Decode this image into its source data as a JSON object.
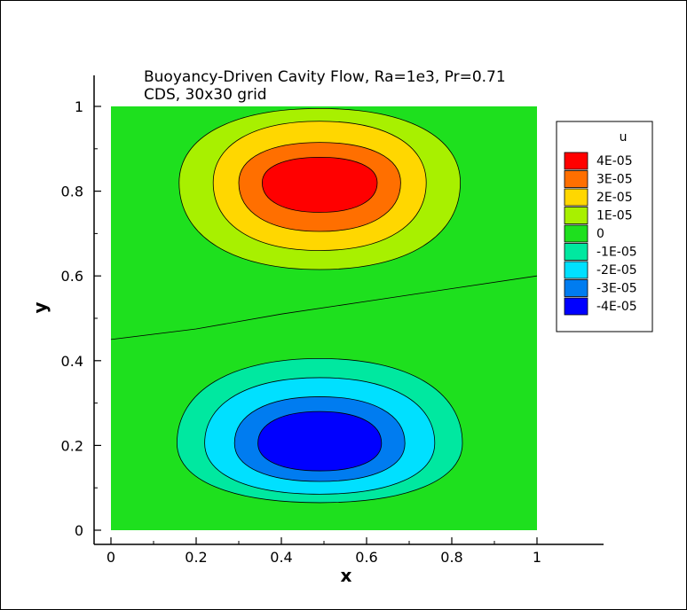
{
  "chart_data": {
    "type": "heatmap",
    "title_lines": [
      "Buoyancy-Driven Cavity Flow, Ra=1e3, Pr=0.71",
      "CDS, 30x30 grid"
    ],
    "xlabel": "x",
    "ylabel": "y",
    "xlim": [
      -0.04,
      1.15
    ],
    "ylim": [
      -0.04,
      1.06
    ],
    "xticks": [
      "0",
      "0.2",
      "0.4",
      "0.6",
      "0.8",
      "1"
    ],
    "xtick_values": [
      0,
      0.2,
      0.4,
      0.6,
      0.8,
      1
    ],
    "yticks": [
      "0",
      "0.2",
      "0.4",
      "0.6",
      "0.8",
      "1"
    ],
    "ytick_values": [
      0,
      0.2,
      0.4,
      0.6,
      0.8,
      1
    ],
    "legend": {
      "title": "u",
      "placement": "right",
      "levels": [
        {
          "label": "4E-05",
          "color": "#ff0000"
        },
        {
          "label": "3E-05",
          "color": "#ff6f00"
        },
        {
          "label": "2E-05",
          "color": "#ffd700"
        },
        {
          "label": "1E-05",
          "color": "#a8f000"
        },
        {
          "label": "0",
          "color": "#1ee01e"
        },
        {
          "label": "-1E-05",
          "color": "#00e8a0"
        },
        {
          "label": "-2E-05",
          "color": "#00e0ff"
        },
        {
          "label": "-3E-05",
          "color": "#007cf0"
        },
        {
          "label": "-4E-05",
          "color": "#0000ff"
        }
      ]
    },
    "field_background_color": "#1ee01e",
    "upper_vortex": {
      "center": [
        0.49,
        0.82
      ],
      "contours": [
        {
          "fill": "#a8f000",
          "rx": 0.33,
          "ry_up": 0.175,
          "ry_down": 0.205
        },
        {
          "fill": "#ffd700",
          "rx": 0.25,
          "ry_up": 0.145,
          "ry_down": 0.16
        },
        {
          "fill": "#ff6f00",
          "rx": 0.19,
          "ry_up": 0.095,
          "ry_down": 0.115
        },
        {
          "fill": "#ff0000",
          "rx": 0.135,
          "ry_up": 0.06,
          "ry_down": 0.07
        }
      ]
    },
    "lower_vortex": {
      "center": [
        0.49,
        0.205
      ],
      "contours": [
        {
          "fill": "#00e8a0",
          "rx": 0.335,
          "ry_up": 0.2,
          "ry_down": 0.14
        },
        {
          "fill": "#00e0ff",
          "rx": 0.27,
          "ry_up": 0.155,
          "ry_down": 0.12
        },
        {
          "fill": "#007cf0",
          "rx": 0.2,
          "ry_up": 0.11,
          "ry_down": 0.09
        },
        {
          "fill": "#0000ff",
          "rx": 0.145,
          "ry_up": 0.075,
          "ry_down": 0.065
        }
      ]
    },
    "zero_line": [
      [
        0,
        0.45
      ],
      [
        0.2,
        0.475
      ],
      [
        0.4,
        0.51
      ],
      [
        0.6,
        0.54
      ],
      [
        0.8,
        0.57
      ],
      [
        1.0,
        0.6
      ]
    ],
    "grid": false
  }
}
